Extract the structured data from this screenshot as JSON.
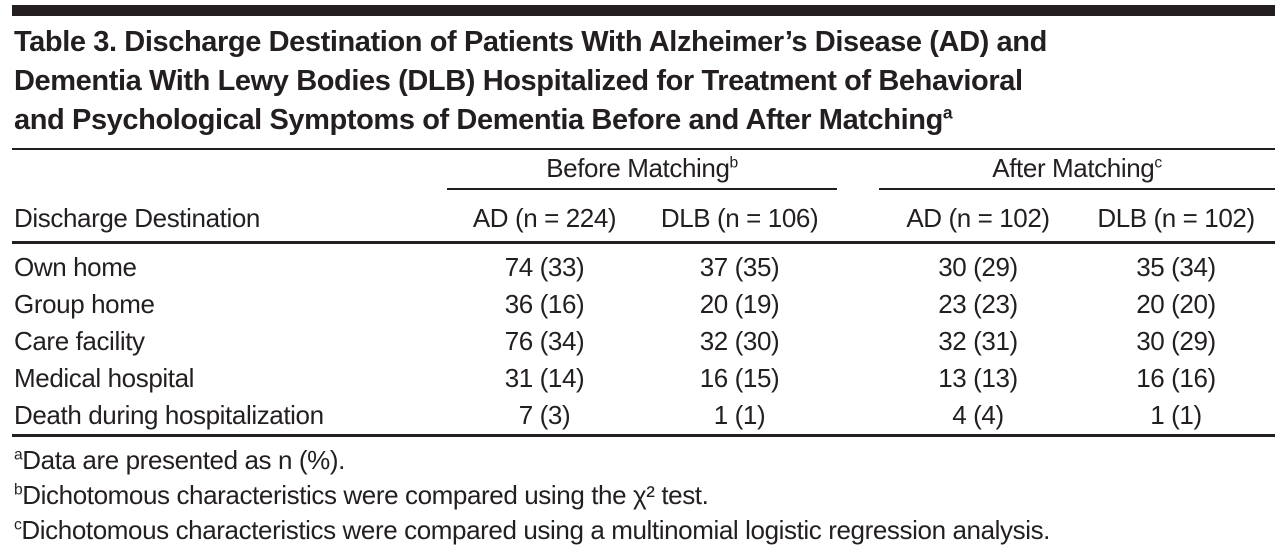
{
  "title": {
    "lines": [
      "Table 3. Discharge Destination of Patients With Alzheimer’s Disease (AD) and",
      "Dementia With Lewy Bodies (DLB) Hospitalized for Treatment of Behavioral",
      "and Psychological Symptoms of Dementia Before and After Matching"
    ],
    "superscript": "a"
  },
  "table": {
    "row_header_label": "Discharge Destination",
    "groups": [
      {
        "label": "Before Matching",
        "superscript": "b"
      },
      {
        "label": "After Matching",
        "superscript": "c"
      }
    ],
    "columns": [
      "AD (n = 224)",
      "DLB (n = 106)",
      "AD (n = 102)",
      "DLB (n = 102)"
    ],
    "rows": [
      {
        "label": "Own home",
        "values": [
          "74 (33)",
          "37 (35)",
          "30 (29)",
          "35 (34)"
        ]
      },
      {
        "label": "Group home",
        "values": [
          "36 (16)",
          "20 (19)",
          "23 (23)",
          "20 (20)"
        ]
      },
      {
        "label": "Care facility",
        "values": [
          "76 (34)",
          "32 (30)",
          "32 (31)",
          "30 (29)"
        ]
      },
      {
        "label": "Medical hospital",
        "values": [
          "31 (14)",
          "16 (15)",
          "13 (13)",
          "16 (16)"
        ]
      },
      {
        "label": "Death during hospitalization",
        "values": [
          "7 (3)",
          "1 (1)",
          "4 (4)",
          "1 (1)"
        ]
      }
    ]
  },
  "footnotes": [
    {
      "marker": "a",
      "text": "Data are presented as n (%)."
    },
    {
      "marker": "b",
      "text": "Dichotomous characteristics were compared using the χ² test."
    },
    {
      "marker": "c",
      "text": "Dichotomous characteristics were compared using a multinomial logistic regression analysis."
    }
  ],
  "colors": {
    "text": "#231f20",
    "rule": "#231f20",
    "top_bar": "#231f20",
    "background": "#ffffff"
  }
}
